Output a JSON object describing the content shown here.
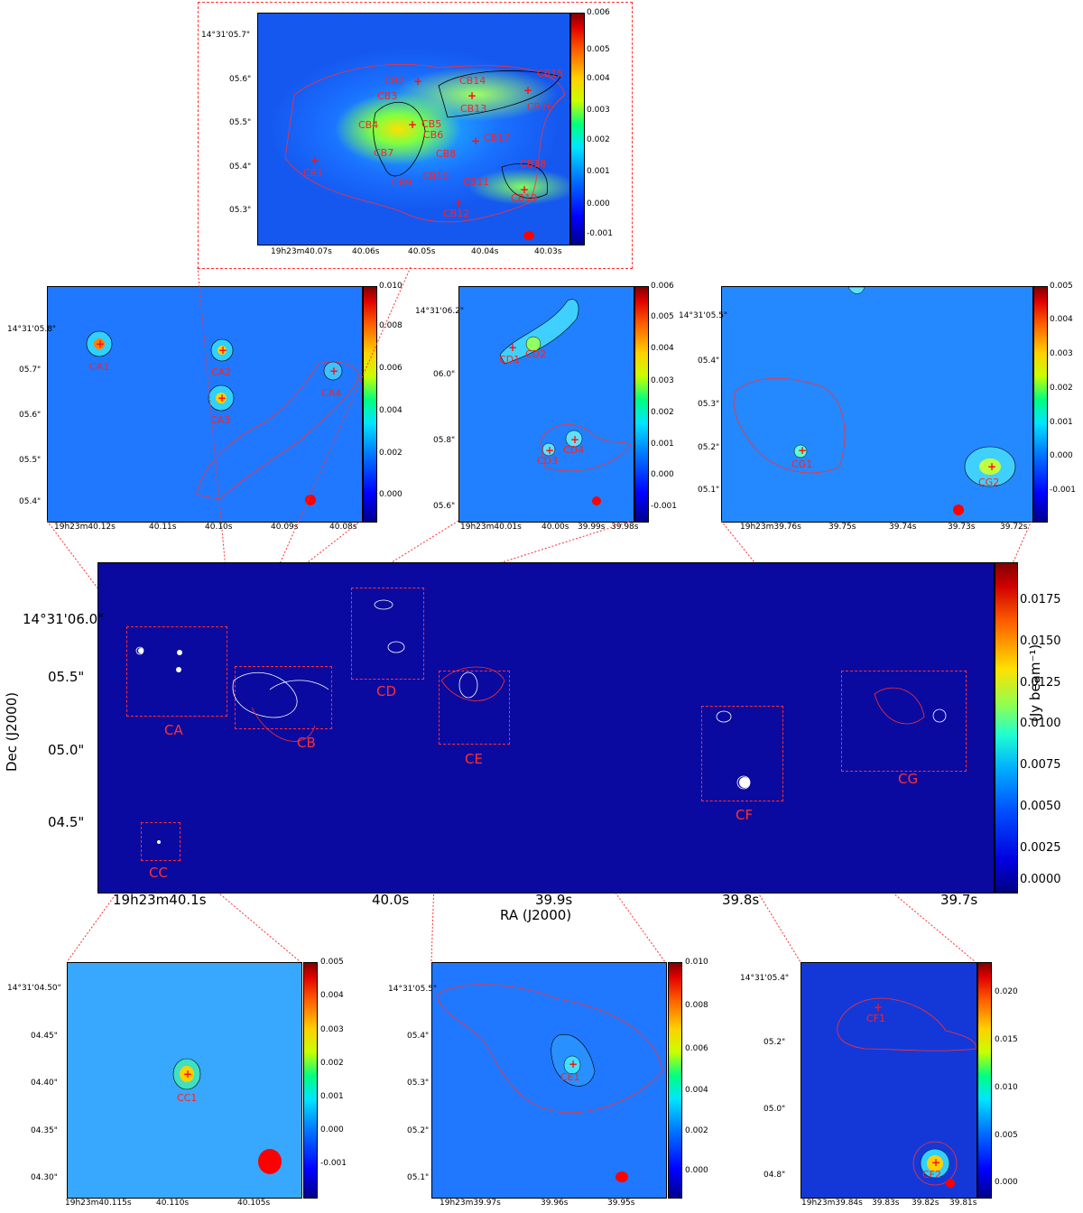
{
  "top_panel": {
    "ra_ticks": [
      "19h23m40.07s",
      "40.06s",
      "40.05s",
      "40.04s",
      "40.03s"
    ],
    "dec_ticks": [
      "14°31'05.7\"",
      "05.6\"",
      "05.5\"",
      "05.4\"",
      "05.3\""
    ],
    "cbar_ticks": [
      "0.006",
      "0.005",
      "0.004",
      "0.003",
      "0.002",
      "0.001",
      "0.000",
      "-0.001"
    ],
    "sources": [
      "CB1",
      "CB2",
      "CB3",
      "CB4",
      "CB5",
      "CB6",
      "CB7",
      "CB8",
      "CB9",
      "CB10",
      "CB11",
      "CB12",
      "CB13",
      "CB14",
      "CB15",
      "CB16",
      "CB17",
      "CB18",
      "CB19"
    ]
  },
  "panel_ca": {
    "ra_ticks": [
      "19h23m40.12s",
      "40.11s",
      "40.10s",
      "40.09s",
      "40.08s"
    ],
    "dec_ticks": [
      "14°31'05.8\"",
      "05.7\"",
      "05.6\"",
      "05.5\"",
      "05.4\""
    ],
    "cbar_ticks": [
      "0.010",
      "0.008",
      "0.006",
      "0.004",
      "0.002",
      "0.000"
    ],
    "sources": [
      "CA1",
      "CA2",
      "CA3",
      "CA4"
    ]
  },
  "panel_cd": {
    "ra_ticks": [
      "19h23m40.01s",
      "40.00s",
      "39.99s",
      "39.98s"
    ],
    "dec_ticks": [
      "14°31'06.2\"",
      "06.0\"",
      "05.8\"",
      "05.6\""
    ],
    "cbar_ticks": [
      "0.006",
      "0.005",
      "0.004",
      "0.003",
      "0.002",
      "0.001",
      "0.000",
      "-0.001"
    ],
    "sources": [
      "CD1",
      "CD2",
      "CD3",
      "CD4"
    ]
  },
  "panel_cg": {
    "ra_ticks": [
      "19h23m39.76s",
      "39.75s",
      "39.74s",
      "39.73s",
      "39.72s"
    ],
    "dec_ticks": [
      "14°31'05.5\"",
      "05.4\"",
      "05.3\"",
      "05.2\"",
      "05.1\""
    ],
    "cbar_ticks": [
      "0.005",
      "0.004",
      "0.003",
      "0.002",
      "0.001",
      "0.000",
      "-0.001"
    ],
    "sources": [
      "CG1",
      "CG2"
    ]
  },
  "main_panel": {
    "ra_ticks": [
      "19h23m40.1s",
      "40.0s",
      "39.9s",
      "39.8s",
      "39.7s"
    ],
    "dec_ticks": [
      "14°31'06.0\"",
      "05.5\"",
      "05.0\"",
      "04.5\""
    ],
    "xlabel": "RA (J2000)",
    "ylabel": "Dec (J2000)",
    "cbar_label": "(Jy beam⁻¹)",
    "cbar_ticks": [
      "0.0175",
      "0.0150",
      "0.0125",
      "0.0100",
      "0.0075",
      "0.0050",
      "0.0025",
      "0.0000"
    ],
    "regions": [
      "CA",
      "CB",
      "CC",
      "CD",
      "CE",
      "CF",
      "CG"
    ]
  },
  "panel_cc": {
    "ra_ticks": [
      "19h23m40.115s",
      "40.110s",
      "40.105s"
    ],
    "dec_ticks": [
      "14°31'04.50\"",
      "04.45\"",
      "04.40\"",
      "04.35\"",
      "04.30\""
    ],
    "cbar_ticks": [
      "0.005",
      "0.004",
      "0.003",
      "0.002",
      "0.001",
      "0.000",
      "-0.001"
    ],
    "sources": [
      "CC1"
    ]
  },
  "panel_ce": {
    "ra_ticks": [
      "19h23m39.97s",
      "39.96s",
      "39.95s"
    ],
    "dec_ticks": [
      "14°31'05.5\"",
      "05.4\"",
      "05.3\"",
      "05.2\"",
      "05.1\""
    ],
    "cbar_ticks": [
      "0.010",
      "0.008",
      "0.006",
      "0.004",
      "0.002",
      "0.000"
    ],
    "sources": [
      "CE1"
    ]
  },
  "panel_cf": {
    "ra_ticks": [
      "19h23m39.84s",
      "39.83s",
      "39.82s",
      "39.81s"
    ],
    "dec_ticks": [
      "14°31'05.4\"",
      "05.2\"",
      "05.0\"",
      "04.8\""
    ],
    "cbar_ticks": [
      "0.020",
      "0.015",
      "0.010",
      "0.005",
      "0.000"
    ],
    "sources": [
      "CF1",
      "CF2"
    ]
  },
  "colors": {
    "contour_red": "#ff3030",
    "marker": "#ff1010",
    "main_background": "#0a0aa0"
  }
}
